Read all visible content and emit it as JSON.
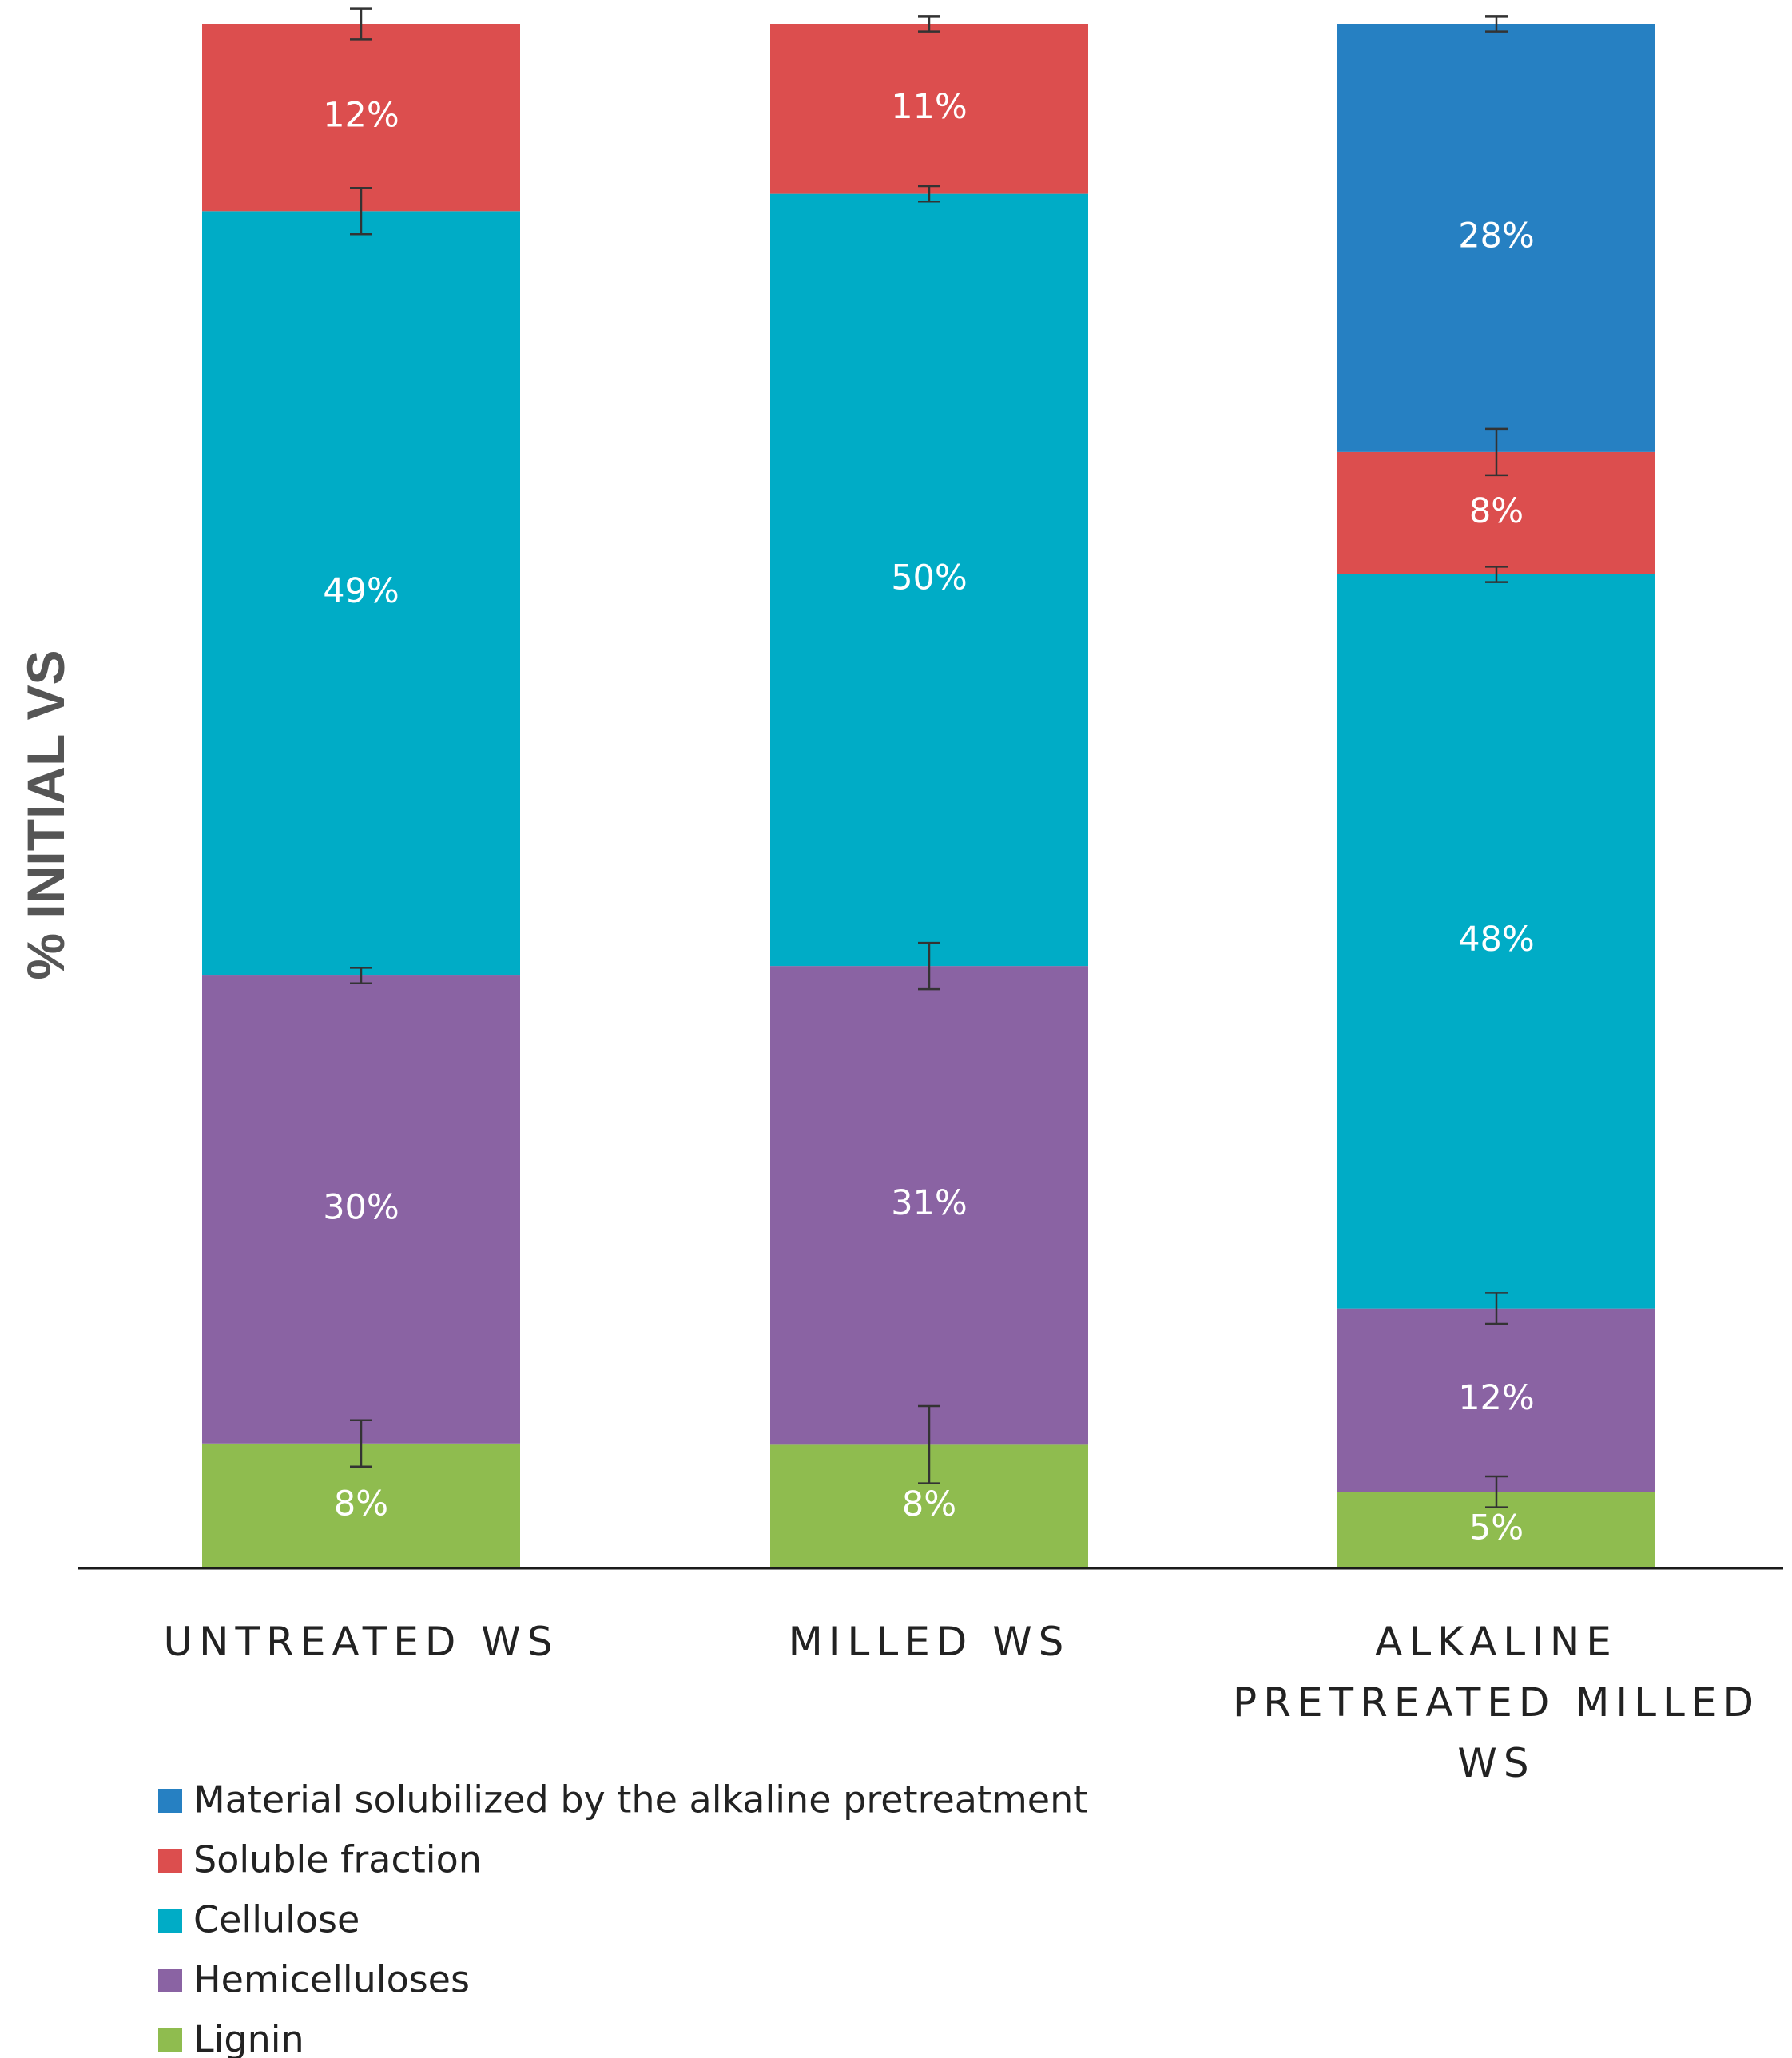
{
  "chart_data": {
    "type": "bar",
    "stacked": true,
    "ylabel": "% INITIAL VS",
    "categories": [
      "UNTREATED WS",
      "MILLED WS",
      "ALKALINE PRETREATED MILLED WS"
    ],
    "category_lines": [
      [
        "UNTREATED WS"
      ],
      [
        "MILLED WS"
      ],
      [
        "ALKALINE",
        "PRETREATED MILLED",
        "WS"
      ]
    ],
    "ylim": [
      0,
      100
    ],
    "grid": false,
    "legend_position": "bottom-left",
    "series": [
      {
        "name": "Lignin",
        "color": "#8fbc4f",
        "values": [
          8,
          8,
          5
        ],
        "labels": [
          "8%",
          "8%",
          "5%"
        ]
      },
      {
        "name": "Hemicelluloses",
        "color": "#8a63a3",
        "values": [
          30,
          31,
          12
        ],
        "labels": [
          "30%",
          "31%",
          "12%"
        ]
      },
      {
        "name": "Cellulose",
        "color": "#00acc6",
        "values": [
          49,
          50,
          48
        ],
        "labels": [
          "49%",
          "50%",
          "48%"
        ]
      },
      {
        "name": "Soluble fraction",
        "color": "#dc4e4e",
        "values": [
          12,
          11,
          8
        ],
        "labels": [
          "12%",
          "11%",
          "8%"
        ]
      },
      {
        "name": "Material solubilized by the alkaline pretreatment",
        "color": "#2680c2",
        "values": [
          0,
          0,
          28
        ],
        "labels": [
          "",
          "",
          "28%"
        ]
      }
    ],
    "error_bars": [
      [
        1.5,
        2.5,
        1
      ],
      [
        0.5,
        1.5,
        1
      ],
      [
        1.5,
        0.5,
        0.5
      ],
      [
        1,
        0.5,
        1.5
      ],
      [
        0,
        0,
        0.5
      ]
    ],
    "legend_order": [
      "Material solubilized by the alkaline pretreatment",
      "Soluble fraction",
      "Cellulose",
      "Hemicelluloses",
      "Lignin"
    ]
  }
}
